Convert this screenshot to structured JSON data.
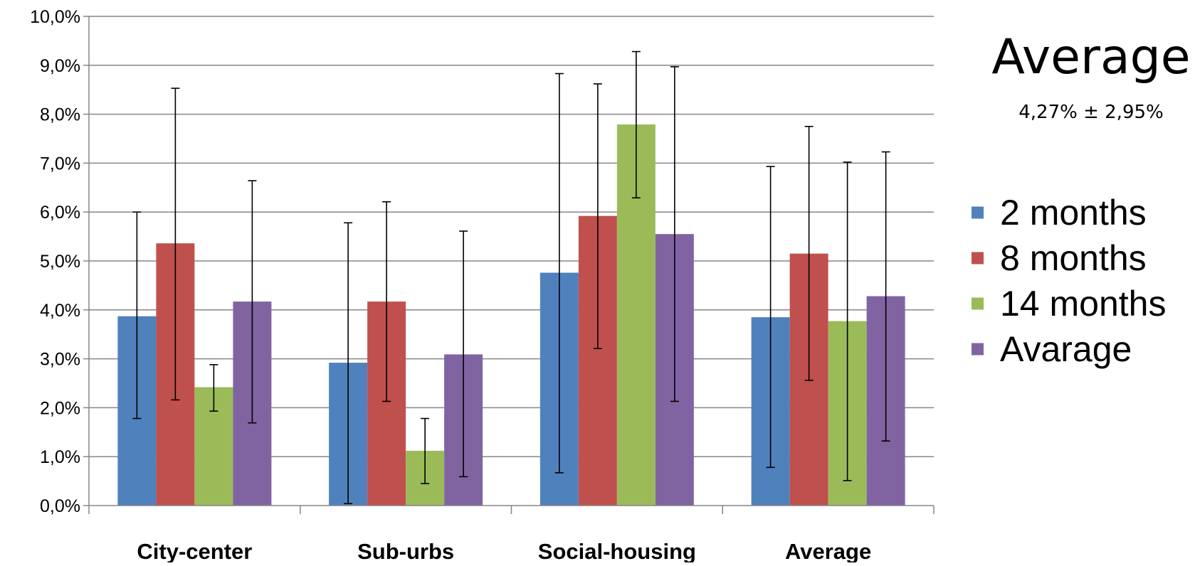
{
  "chart_data": {
    "type": "bar",
    "categories": [
      "City-center",
      "Sub-urbs",
      "Social-housing",
      "Average"
    ],
    "series": [
      {
        "name": "2 months",
        "color": "#4f81bd",
        "values": [
          3.87,
          2.92,
          4.76,
          3.85
        ],
        "err_low": [
          1.78,
          0.04,
          0.67,
          0.78
        ],
        "err_high": [
          6.0,
          5.78,
          8.83,
          6.93
        ]
      },
      {
        "name": "8 months",
        "color": "#c0504d",
        "values": [
          5.36,
          4.17,
          5.92,
          5.15
        ],
        "err_low": [
          2.16,
          2.13,
          3.21,
          2.56
        ],
        "err_high": [
          8.53,
          6.21,
          8.62,
          7.75
        ]
      },
      {
        "name": "14 months",
        "color": "#9bbb59",
        "values": [
          2.42,
          1.12,
          7.79,
          3.77
        ],
        "err_low": [
          1.93,
          0.45,
          6.29,
          0.51
        ],
        "err_high": [
          2.88,
          1.78,
          9.28,
          7.02
        ]
      },
      {
        "name": "Avarage",
        "color": "#8064a2",
        "values": [
          4.17,
          3.09,
          5.55,
          4.28
        ],
        "err_low": [
          1.69,
          0.59,
          2.13,
          1.32
        ],
        "err_high": [
          6.64,
          5.61,
          8.97,
          7.23
        ]
      }
    ],
    "yticks": [
      "0,0%",
      "1,0%",
      "2,0%",
      "3,0%",
      "4,0%",
      "5,0%",
      "6,0%",
      "7,0%",
      "8,0%",
      "9,0%",
      "10,0%"
    ],
    "ylim": [
      0,
      10
    ],
    "grid": true,
    "legend_position": "right",
    "annotation": {
      "title": "Average",
      "subtitle": "4,27% ± 2,95%"
    }
  }
}
